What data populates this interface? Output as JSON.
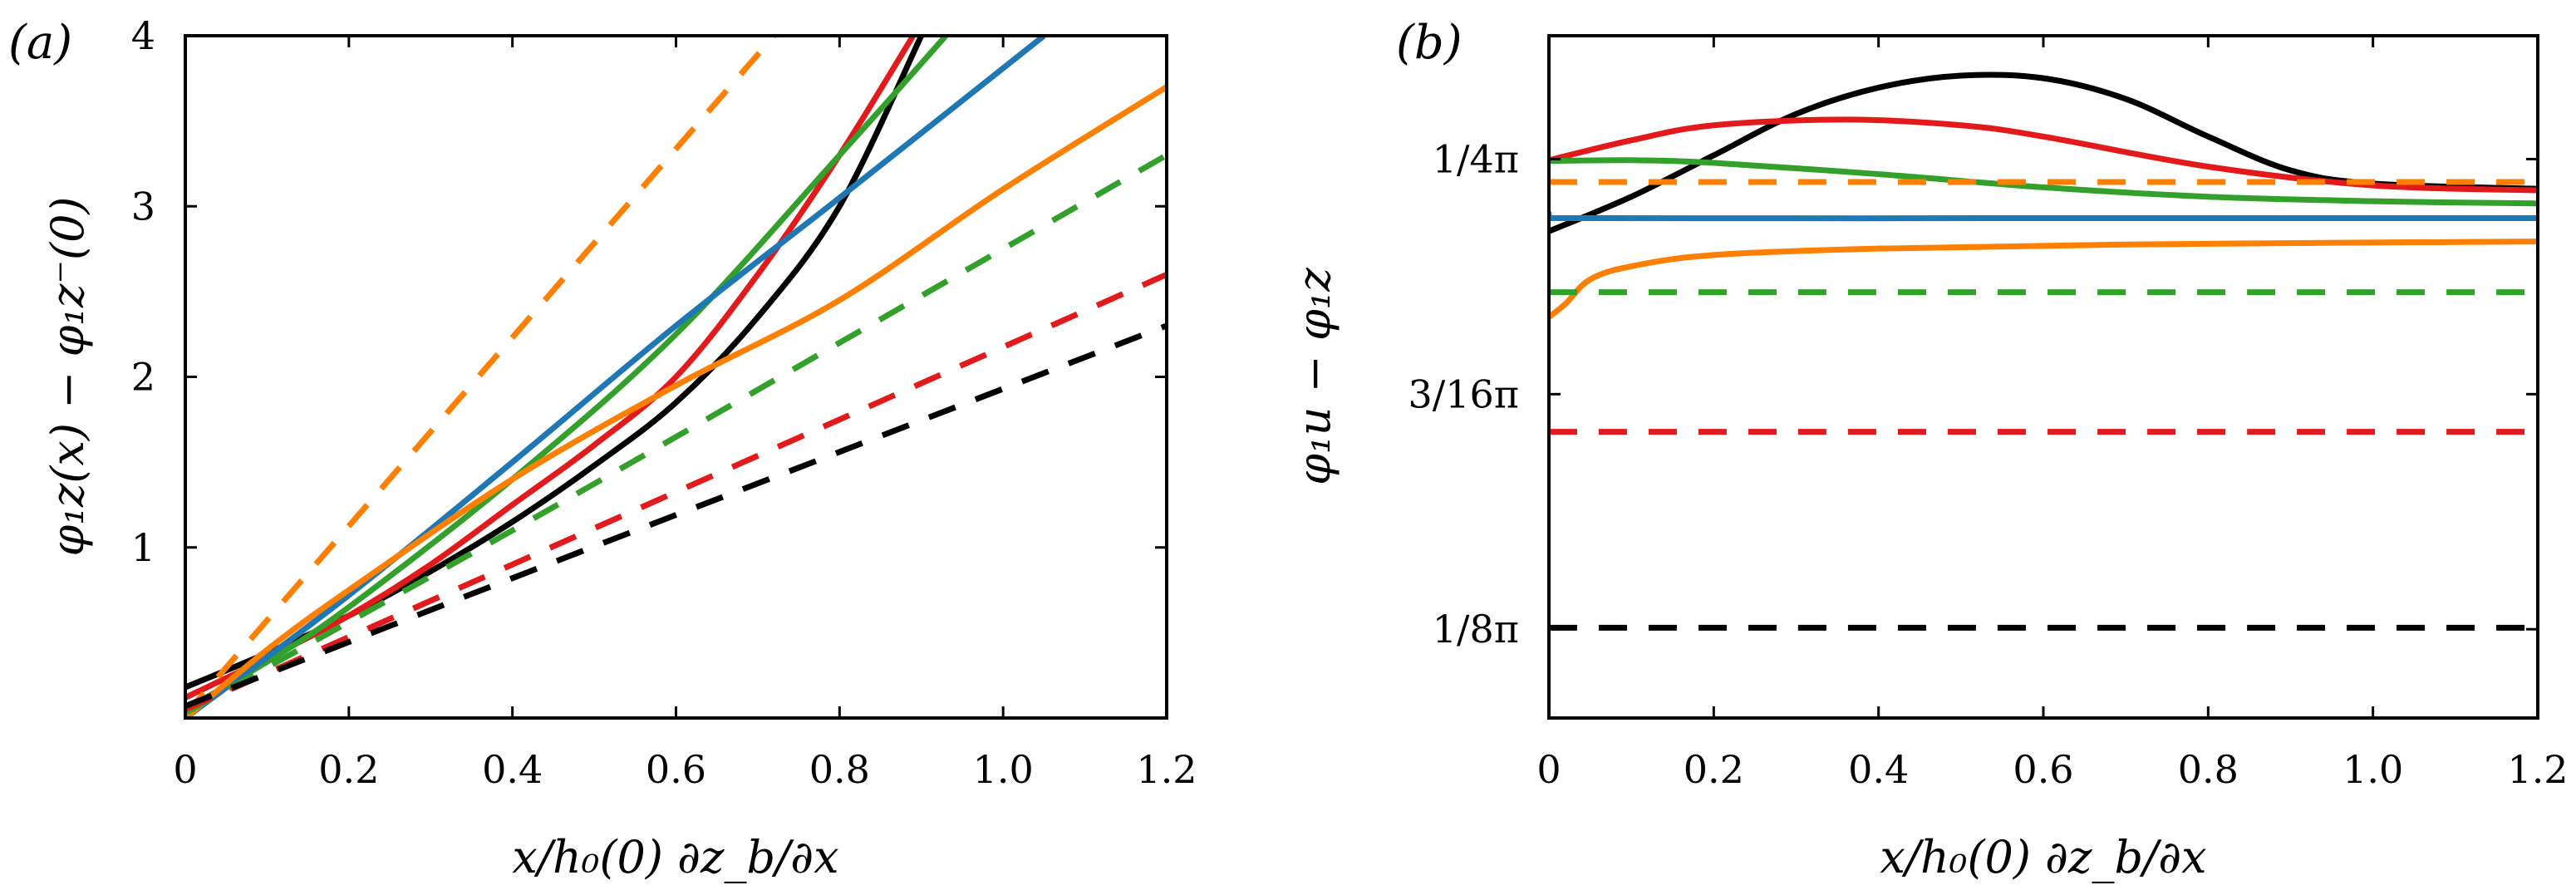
{
  "colors": {
    "black": "#000000",
    "red": "#e31a1c",
    "green": "#33a02c",
    "blue": "#1f78b4",
    "orange": "#ff7f00"
  },
  "chart_data": [
    {
      "type": "line",
      "panel_label": "(a)",
      "xlabel": "x/h₀(0) ∂z_b/∂x",
      "ylabel": "φ₁z(x) − φ₁z⁻(0)",
      "xlim": [
        0,
        1.2
      ],
      "ylim": [
        0,
        4
      ],
      "xticks": [
        "0",
        "0.2",
        "0.4",
        "0.6",
        "0.8",
        "1.0",
        "1.2"
      ],
      "xtick_values": [
        0,
        0.2,
        0.4,
        0.6,
        0.8,
        1.0,
        1.2
      ],
      "yticks": [
        "1",
        "2",
        "3",
        "4"
      ],
      "ytick_values": [
        1,
        2,
        3,
        4
      ],
      "grid": false,
      "series": [
        {
          "name": "black-solid",
          "color": "black",
          "dash": false,
          "x": [
            0,
            0.1,
            0.2,
            0.3,
            0.4,
            0.5,
            0.6,
            0.7,
            0.8,
            0.9
          ],
          "y": [
            0.18,
            0.38,
            0.6,
            0.86,
            1.15,
            1.48,
            1.85,
            2.35,
            3.0,
            4.0
          ]
        },
        {
          "name": "red-solid",
          "color": "red",
          "dash": false,
          "x": [
            0,
            0.1,
            0.2,
            0.3,
            0.4,
            0.5,
            0.6,
            0.7,
            0.8,
            0.89
          ],
          "y": [
            0.12,
            0.35,
            0.6,
            0.9,
            1.25,
            1.6,
            2.0,
            2.6,
            3.3,
            4.0
          ]
        },
        {
          "name": "green-solid",
          "color": "green",
          "dash": false,
          "x": [
            0,
            0.1,
            0.2,
            0.4,
            0.6,
            0.8,
            0.93
          ],
          "y": [
            0.05,
            0.33,
            0.65,
            1.4,
            2.25,
            3.3,
            4.0
          ]
        },
        {
          "name": "blue-solid",
          "color": "blue",
          "dash": false,
          "x": [
            0,
            0.2,
            0.4,
            0.6,
            0.8,
            1.05
          ],
          "y": [
            0,
            0.72,
            1.5,
            2.3,
            3.05,
            4.0
          ]
        },
        {
          "name": "orange-solid",
          "color": "orange",
          "dash": false,
          "x": [
            0,
            0.1,
            0.2,
            0.4,
            0.6,
            0.8,
            1.0,
            1.2
          ],
          "y": [
            0,
            0.4,
            0.75,
            1.4,
            1.95,
            2.45,
            3.1,
            3.7
          ]
        },
        {
          "name": "orange-dashed",
          "color": "orange",
          "dash": true,
          "x": [
            0,
            0.72
          ],
          "y": [
            0.02,
            4.0
          ]
        },
        {
          "name": "green-dashed",
          "color": "green",
          "dash": true,
          "x": [
            0,
            0.4,
            0.8,
            1.2
          ],
          "y": [
            0.03,
            1.1,
            2.2,
            3.3
          ]
        },
        {
          "name": "red-dashed",
          "color": "red",
          "dash": true,
          "x": [
            0,
            0.4,
            0.8,
            1.2
          ],
          "y": [
            0.05,
            0.9,
            1.75,
            2.6
          ]
        },
        {
          "name": "black-dashed",
          "color": "black",
          "dash": true,
          "x": [
            0,
            0.4,
            0.8,
            1.2
          ],
          "y": [
            0.07,
            0.82,
            1.56,
            2.3
          ]
        }
      ]
    },
    {
      "type": "line",
      "panel_label": "(b)",
      "xlabel": "x/h₀(0) ∂z_b/∂x",
      "ylabel": "φ₁u − φ₁z",
      "y_units": "π",
      "xlim": [
        0,
        1.2
      ],
      "ylim": [
        0.1014,
        0.2828
      ],
      "xticks": [
        "0",
        "0.2",
        "0.4",
        "0.6",
        "0.8",
        "1.0",
        "1.2"
      ],
      "xtick_values": [
        0,
        0.2,
        0.4,
        0.6,
        0.8,
        1.0,
        1.2
      ],
      "yticks": [
        "1/8π",
        "3/16π",
        "1/4π"
      ],
      "ytick_values": [
        0.125,
        0.1875,
        0.25
      ],
      "grid": false,
      "series": [
        {
          "name": "black-solid",
          "color": "black",
          "dash": false,
          "x": [
            0,
            0.1,
            0.2,
            0.3,
            0.4,
            0.5,
            0.6,
            0.7,
            0.8,
            0.9,
            1.0,
            1.2
          ],
          "y": [
            0.2308,
            0.24,
            0.251,
            0.262,
            0.269,
            0.2722,
            0.2715,
            0.266,
            0.256,
            0.247,
            0.2435,
            0.2421
          ]
        },
        {
          "name": "red-solid",
          "color": "red",
          "dash": false,
          "x": [
            0,
            0.1,
            0.2,
            0.36,
            0.5,
            0.6,
            0.8,
            1.0,
            1.2
          ],
          "y": [
            0.2497,
            0.255,
            0.259,
            0.2605,
            0.259,
            0.256,
            0.248,
            0.243,
            0.2417
          ]
        },
        {
          "name": "green-solid",
          "color": "green",
          "dash": false,
          "x": [
            0,
            0.1,
            0.2,
            0.4,
            0.6,
            0.8,
            1.0,
            1.2
          ],
          "y": [
            0.2495,
            0.2497,
            0.249,
            0.246,
            0.2425,
            0.24,
            0.2388,
            0.2382
          ]
        },
        {
          "name": "orange-dashed",
          "color": "orange",
          "dash": true,
          "x": [
            0,
            1.2
          ],
          "y": [
            0.2439,
            0.2439
          ]
        },
        {
          "name": "blue-solid",
          "color": "blue",
          "dash": false,
          "x": [
            0,
            0.01,
            0.6,
            1.2
          ],
          "y": [
            0.2355,
            0.2343,
            0.2343,
            0.2343
          ]
        },
        {
          "name": "orange-solid",
          "color": "orange",
          "dash": false,
          "x": [
            0,
            0.02,
            0.05,
            0.1,
            0.2,
            0.4,
            0.7,
            1.2
          ],
          "y": [
            0.208,
            0.2115,
            0.218,
            0.2215,
            0.2245,
            0.2262,
            0.2273,
            0.2281
          ]
        },
        {
          "name": "green-dashed",
          "color": "green",
          "dash": true,
          "x": [
            0,
            1.2
          ],
          "y": [
            0.2146,
            0.2146
          ]
        },
        {
          "name": "red-dashed",
          "color": "red",
          "dash": true,
          "x": [
            0,
            1.2
          ],
          "y": [
            0.1775,
            0.1775
          ]
        },
        {
          "name": "black-dashed",
          "color": "black",
          "dash": true,
          "x": [
            0,
            1.2
          ],
          "y": [
            0.1254,
            0.1254
          ]
        }
      ]
    }
  ]
}
